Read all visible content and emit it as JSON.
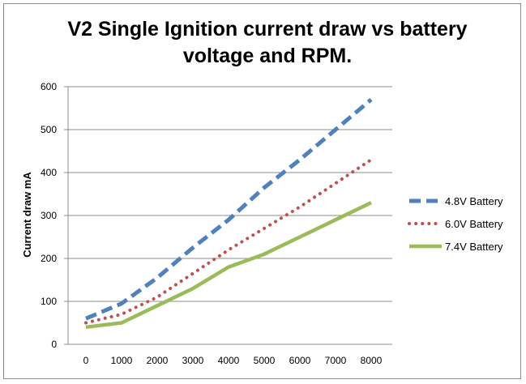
{
  "chart_data": {
    "type": "line",
    "title": "V2 Single Ignition current draw vs battery voltage and RPM.",
    "title_lines": [
      "V2 Single Ignition current draw vs battery",
      "voltage and RPM."
    ],
    "xlabel": "",
    "ylabel": "Current draw mA",
    "x": [
      0,
      1000,
      2000,
      3000,
      4000,
      5000,
      6000,
      7000,
      8000
    ],
    "ylim": [
      0,
      600
    ],
    "yticks": [
      0,
      100,
      200,
      300,
      400,
      500,
      600
    ],
    "grid": true,
    "legend_position": "right",
    "series": [
      {
        "name": "4.8V Battery",
        "color": "#4f81bd",
        "style": "dashed",
        "values": [
          60,
          95,
          155,
          225,
          290,
          365,
          430,
          500,
          570
        ]
      },
      {
        "name": "6.0V Battery",
        "color": "#c0504d",
        "style": "dotted",
        "values": [
          50,
          70,
          110,
          165,
          220,
          270,
          320,
          375,
          430
        ]
      },
      {
        "name": "7.4V Battery",
        "color": "#9bbb59",
        "style": "solid",
        "values": [
          40,
          50,
          90,
          130,
          180,
          210,
          250,
          290,
          330
        ]
      }
    ]
  }
}
